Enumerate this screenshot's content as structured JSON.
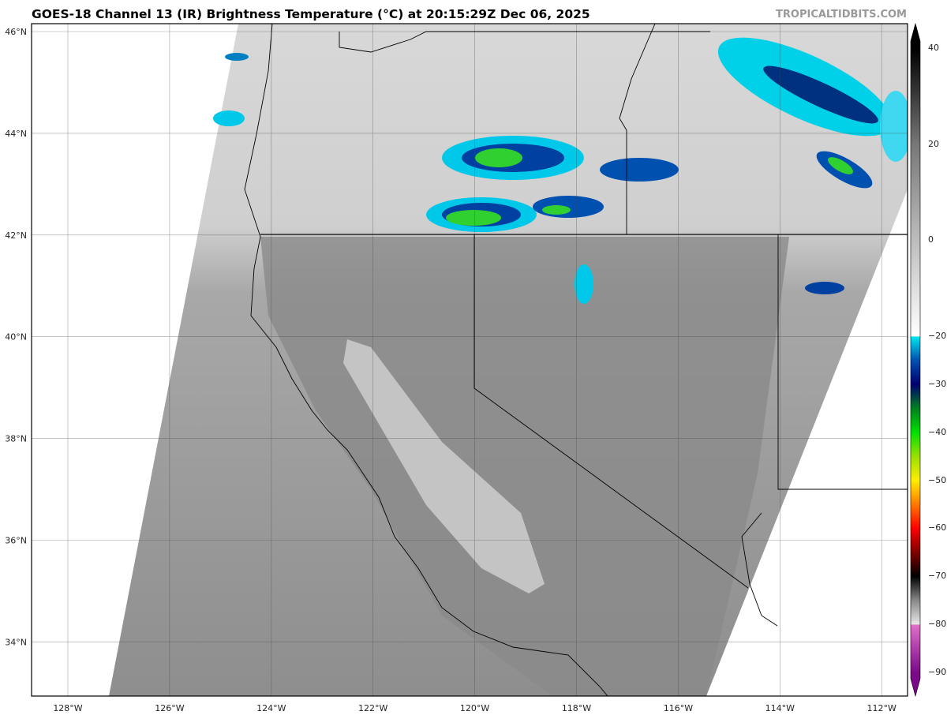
{
  "title": "GOES-18 Channel 13 (IR) Brightness Temperature (°C) at 20:15:29Z Dec 06, 2025",
  "credit": "TROPICALTIDBITS.COM",
  "map": {
    "longitude_labels": [
      "128°W",
      "126°W",
      "124°W",
      "122°W",
      "120°W",
      "118°W",
      "116°W",
      "114°W",
      "112°W"
    ],
    "latitude_labels": [
      "46°N",
      "44°N",
      "42°N",
      "40°N",
      "38°N",
      "36°N",
      "34°N"
    ]
  },
  "colorbar": {
    "range": [
      -90,
      40
    ],
    "tick_labels": [
      "40",
      "20",
      "0",
      "−20",
      "−30",
      "−40",
      "−50",
      "−60",
      "−70",
      "−80",
      "−90"
    ],
    "tick_values": [
      40,
      20,
      0,
      -20,
      -30,
      -40,
      -50,
      -60,
      -70,
      -80,
      -90
    ],
    "stops": [
      [
        -90,
        "#7a0a8a"
      ],
      [
        -80.1,
        "#e070c8"
      ],
      [
        -80,
        "#e8e8e8"
      ],
      [
        -75,
        "#888888"
      ],
      [
        -70,
        "#000000"
      ],
      [
        -65,
        "#800000"
      ],
      [
        -60,
        "#ff0000"
      ],
      [
        -55,
        "#ff7a00"
      ],
      [
        -50,
        "#ffee00"
      ],
      [
        -45,
        "#99e000"
      ],
      [
        -40,
        "#00e000"
      ],
      [
        -35,
        "#008020"
      ],
      [
        -30,
        "#000070"
      ],
      [
        -25,
        "#0050b0"
      ],
      [
        -20.1,
        "#00e8f0"
      ],
      [
        -20,
        "#ffffff"
      ],
      [
        0,
        "#bdbdbd"
      ],
      [
        20,
        "#777777"
      ],
      [
        40,
        "#000000"
      ]
    ]
  }
}
